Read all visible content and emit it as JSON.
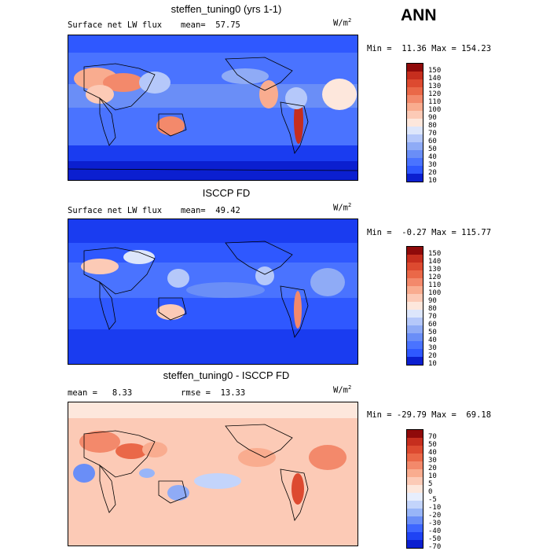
{
  "season": "ANN",
  "colors": {
    "abs_scale": [
      "#00007a",
      "#0b1fd0",
      "#1a3cf0",
      "#2f58ff",
      "#4a73ff",
      "#6a8ef7",
      "#8fabf6",
      "#b5c8fa",
      "#dde6fb",
      "#fde7dc",
      "#fccab6",
      "#f9ac8f",
      "#f3896b",
      "#ea6848",
      "#dd4a30",
      "#c62e1e",
      "#8f0a0a"
    ],
    "diff_scale": [
      "#00007a",
      "#0b1fd0",
      "#1f43f4",
      "#3e66ff",
      "#6a8ef7",
      "#98b5f8",
      "#c3d4fb",
      "#e7eefd",
      "#fde7dc",
      "#fccab6",
      "#f9ac8f",
      "#f3896b",
      "#ea6848",
      "#dd4a30",
      "#c62e1e",
      "#8f0a0a"
    ]
  },
  "panels": [
    {
      "title": "steffen_tuning0 (yrs 1-1)",
      "left_label": "Surface net LW flux",
      "mean_label": "mean=  57.75",
      "units": "W/m",
      "units_sup": "2",
      "minmax": "Min =  11.36 Max = 154.23",
      "ticks": [
        "150",
        "140",
        "130",
        "120",
        "110",
        "100",
        "90",
        "80",
        "70",
        "60",
        "50",
        "40",
        "30",
        "20",
        "10"
      ]
    },
    {
      "title": "ISCCP FD",
      "left_label": "Surface net LW flux",
      "mean_label": "mean=  49.42",
      "units": "W/m",
      "units_sup": "2",
      "minmax": "Min =  -0.27 Max = 115.77",
      "ticks": [
        "150",
        "140",
        "130",
        "120",
        "110",
        "100",
        "90",
        "80",
        "70",
        "60",
        "50",
        "40",
        "30",
        "20",
        "10"
      ]
    },
    {
      "title": "steffen_tuning0 - ISCCP FD",
      "left_label": "mean =   8.33",
      "mean_label": "rmse =  13.33",
      "units": "W/m",
      "units_sup": "2",
      "minmax": "Min = -29.79 Max =  69.18",
      "ticks": [
        "70",
        "50",
        "40",
        "30",
        "20",
        "10",
        "5",
        "0",
        "-5",
        "-10",
        "-20",
        "-30",
        "-40",
        "-50",
        "-70"
      ]
    }
  ]
}
